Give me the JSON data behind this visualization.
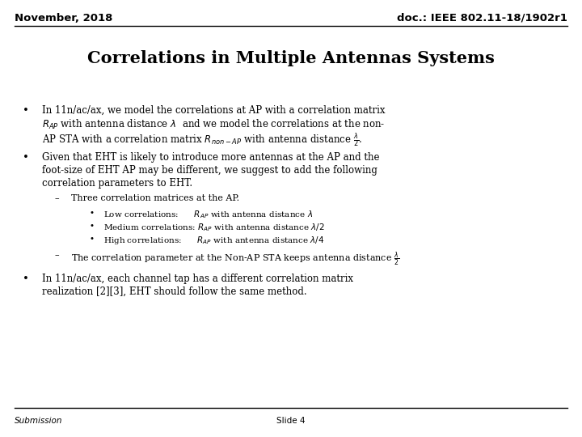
{
  "header_left": "November, 2018",
  "header_right": "doc.: IEEE 802.11-18/1902r1",
  "title": "Correlations in Multiple Antennas Systems",
  "footer_left": "Submission",
  "footer_center": "Slide 4",
  "bg_color": "#ffffff",
  "text_color": "#000000",
  "header_fontsize": 9.5,
  "title_fontsize": 15,
  "body_fontsize": 8.5,
  "sub_fontsize": 8.0,
  "subsub_fontsize": 7.5
}
